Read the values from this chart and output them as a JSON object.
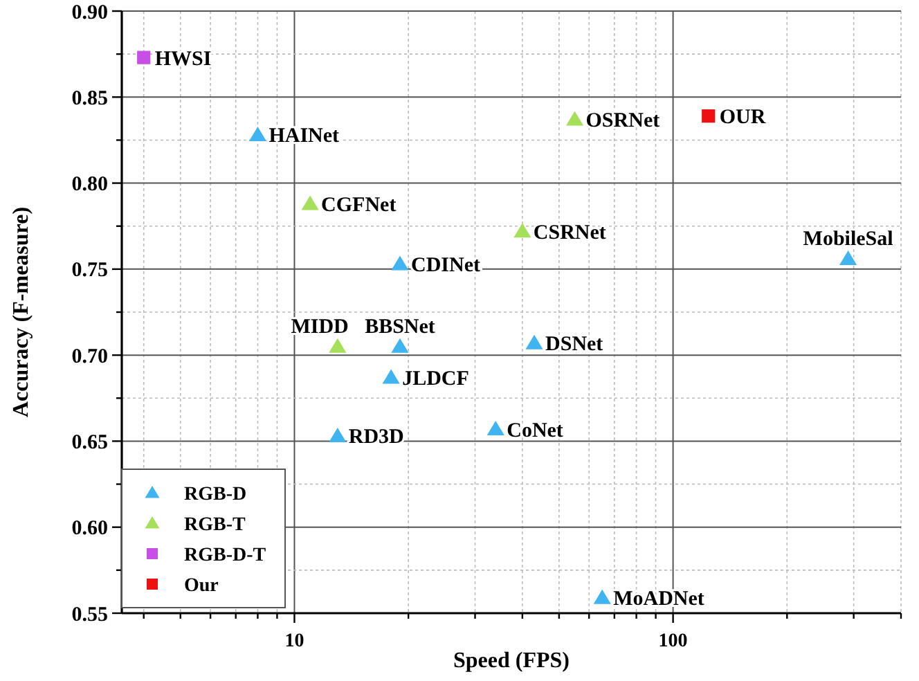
{
  "chart_data": {
    "type": "scatter",
    "xlabel": "Speed (FPS)",
    "ylabel": "Accuracy (F-measure)",
    "log": "x",
    "grid": true,
    "legend": "bottom left",
    "xlim": [
      3.5,
      400
    ],
    "xticks": [
      {
        "value": 4,
        "label": null
      },
      {
        "value": 5,
        "label": null
      },
      {
        "value": 6,
        "label": null
      },
      {
        "value": 7,
        "label": null
      },
      {
        "value": 8,
        "label": null
      },
      {
        "value": 9,
        "label": null
      },
      10,
      {
        "value": 20,
        "label": null
      },
      {
        "value": 30,
        "label": null
      },
      {
        "value": 40,
        "label": null
      },
      {
        "value": 50,
        "label": null
      },
      {
        "value": 60,
        "label": null
      },
      {
        "value": 70,
        "label": null
      },
      {
        "value": 80,
        "label": null
      },
      {
        "value": 90,
        "label": null
      },
      100,
      {
        "value": 200,
        "label": null
      },
      {
        "value": 300,
        "label": null
      },
      {
        "value": 400,
        "label": null
      }
    ],
    "ylim": [
      0.55,
      0.9
    ],
    "yticks": [
      {
        "value": 0.55,
        "label": "0.55"
      },
      {
        "value": 0.575,
        "label": null
      },
      {
        "value": 0.6,
        "label": "0.60"
      },
      {
        "value": 0.625,
        "label": null
      },
      {
        "value": 0.65,
        "label": "0.65"
      },
      {
        "value": 0.675,
        "label": null
      },
      {
        "value": 0.7,
        "label": "0.70"
      },
      {
        "value": 0.725,
        "label": null
      },
      {
        "value": 0.75,
        "label": "0.75"
      },
      {
        "value": 0.775,
        "label": null
      },
      {
        "value": 0.8,
        "label": "0.80"
      },
      {
        "value": 0.825,
        "label": null
      },
      {
        "value": 0.85,
        "label": "0.85"
      },
      {
        "value": 0.875,
        "label": null
      },
      {
        "value": 0.9,
        "label": "0.90"
      }
    ],
    "series": [
      {
        "name": "RGB-D",
        "color": "#3fb4f0",
        "marker": "triangle",
        "x": [
          8,
          19,
          19,
          18,
          13,
          34,
          43,
          65,
          290
        ],
        "values": [
          0.828,
          0.753,
          0.705,
          0.687,
          0.653,
          0.657,
          0.707,
          0.559,
          0.756
        ]
      },
      {
        "name": "RGB-T",
        "color": "#a6e05a",
        "marker": "triangle",
        "x": [
          11,
          13,
          40,
          55
        ],
        "values": [
          0.788,
          0.705,
          0.772,
          0.837
        ]
      },
      {
        "name": "RGB-D-T",
        "color": "#c84fe6",
        "marker": "square",
        "x": [
          4
        ],
        "values": [
          0.873
        ]
      },
      {
        "name": "Our",
        "color": "#ee1111",
        "marker": "square",
        "x": [
          124
        ],
        "values": [
          0.839
        ]
      }
    ],
    "annotations": [
      {
        "text": "HAINet",
        "x": 8,
        "y": 0.828
      },
      {
        "text": "CDINet",
        "x": 19,
        "y": 0.753
      },
      {
        "text": "BBSNet",
        "x": 19,
        "y": 0.705
      },
      {
        "text": "JLDCF",
        "x": 18,
        "y": 0.687
      },
      {
        "text": "RD3D",
        "x": 13,
        "y": 0.653
      },
      {
        "text": "CoNet",
        "x": 34,
        "y": 0.657
      },
      {
        "text": "DSNet",
        "x": 43,
        "y": 0.707
      },
      {
        "text": "MoADNet",
        "x": 65,
        "y": 0.559
      },
      {
        "text": "MobileSal",
        "x": 290,
        "y": 0.756
      },
      {
        "text": "CGFNet",
        "x": 11,
        "y": 0.788
      },
      {
        "text": "MIDD",
        "x": 13,
        "y": 0.705
      },
      {
        "text": "CSRNet",
        "x": 40,
        "y": 0.772
      },
      {
        "text": "OSRNet",
        "x": 55,
        "y": 0.837
      },
      {
        "text": "HWSI",
        "x": 4,
        "y": 0.873
      },
      {
        "text": "OUR",
        "x": 124,
        "y": 0.839
      }
    ]
  }
}
